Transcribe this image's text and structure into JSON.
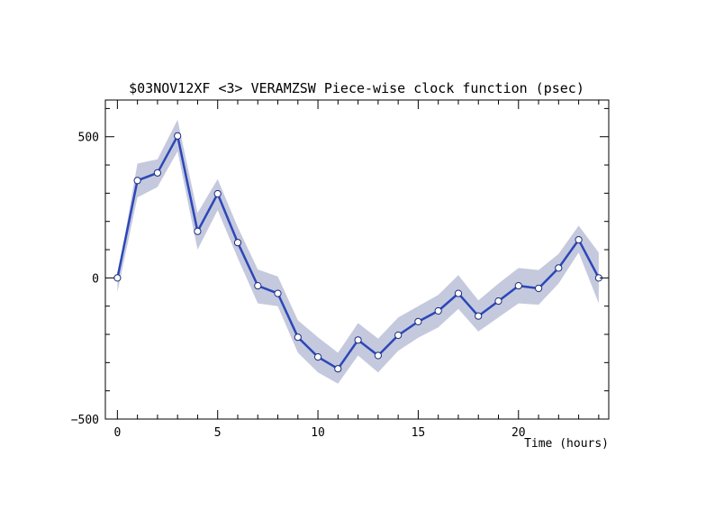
{
  "chart_data": {
    "type": "line",
    "title": "$03NOV12XF <3>  VERAMZSW  Piece-wise clock function (psec)",
    "xlabel": "Time (hours)",
    "ylabel": "",
    "xlim": [
      -0.6,
      24.5
    ],
    "ylim": [
      -500,
      630
    ],
    "xticks": [
      0,
      5,
      10,
      15,
      20
    ],
    "xtick_labels": [
      "0",
      "5",
      "10",
      "15",
      "20"
    ],
    "yticks": [
      -500,
      0,
      500
    ],
    "ytick_labels": [
      "−500",
      "0",
      "500"
    ],
    "grid": false,
    "legend": "none",
    "line_color": "#2b47b8",
    "band_color": "#c5c9dd",
    "series": [
      {
        "x": [
          0,
          1,
          2,
          3,
          4,
          5,
          6,
          7,
          8,
          9,
          10,
          11,
          12,
          13,
          14,
          15,
          16,
          17,
          18,
          19,
          20,
          21,
          22,
          23,
          24
        ],
        "values": [
          0,
          345,
          372,
          503,
          165,
          298,
          125,
          -28,
          -55,
          -210,
          -280,
          -322,
          -220,
          -275,
          -203,
          -155,
          -117,
          -55,
          -135,
          -82,
          -28,
          -37,
          35,
          135,
          0
        ],
        "upper": [
          0,
          405,
          420,
          560,
          230,
          350,
          180,
          30,
          5,
          -150,
          -210,
          -265,
          -160,
          -215,
          -140,
          -100,
          -60,
          10,
          -80,
          -20,
          35,
          28,
          85,
          185,
          90
        ],
        "lower": [
          -50,
          285,
          322,
          448,
          100,
          240,
          70,
          -90,
          -100,
          -265,
          -335,
          -375,
          -275,
          -335,
          -258,
          -212,
          -175,
          -110,
          -190,
          -140,
          -90,
          -95,
          -20,
          90,
          -90
        ]
      }
    ]
  }
}
